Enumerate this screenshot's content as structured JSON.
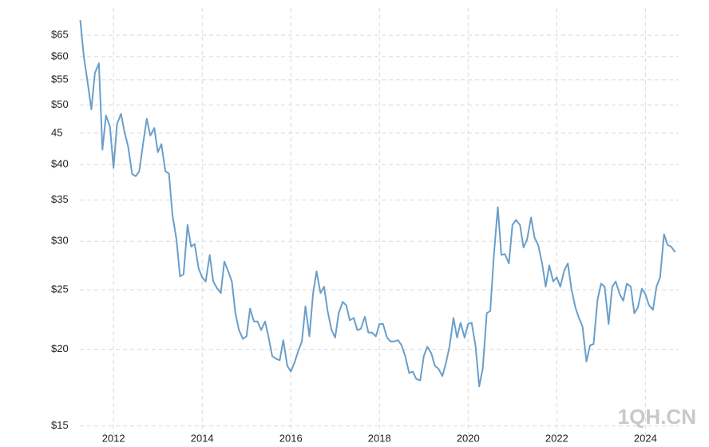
{
  "chart_data": {
    "type": "line",
    "log_scale": true,
    "grid": true,
    "watermark": "1QH.CN",
    "xlim": [
      2010.88,
      2024.75
    ],
    "xticks": [
      2012,
      2014,
      2016,
      2018,
      2020,
      2022,
      2024
    ],
    "ylim": [
      14.5,
      72
    ],
    "yticks": [
      {
        "value": 15,
        "label": "$15"
      },
      {
        "value": 20,
        "label": "$20"
      },
      {
        "value": 25,
        "label": "$25"
      },
      {
        "value": 30,
        "label": "$30"
      },
      {
        "value": 35,
        "label": "$35"
      },
      {
        "value": 40,
        "label": "$40"
      },
      45,
      {
        "value": 50,
        "label": "$50"
      },
      {
        "value": 55,
        "label": "$55"
      },
      {
        "value": 60,
        "label": "$60"
      },
      {
        "value": 65,
        "label": "$65"
      }
    ],
    "x": [
      2011.25,
      2011.33,
      2011.42,
      2011.5,
      2011.58,
      2011.67,
      2011.75,
      2011.83,
      2011.92,
      2012,
      2012.08,
      2012.17,
      2012.25,
      2012.33,
      2012.42,
      2012.5,
      2012.58,
      2012.67,
      2012.75,
      2012.83,
      2012.92,
      2013,
      2013.08,
      2013.17,
      2013.25,
      2013.33,
      2013.42,
      2013.5,
      2013.58,
      2013.67,
      2013.75,
      2013.83,
      2013.92,
      2014,
      2014.08,
      2014.17,
      2014.25,
      2014.33,
      2014.42,
      2014.5,
      2014.58,
      2014.67,
      2014.75,
      2014.83,
      2014.92,
      2015,
      2015.08,
      2015.17,
      2015.25,
      2015.33,
      2015.42,
      2015.5,
      2015.58,
      2015.67,
      2015.75,
      2015.83,
      2015.92,
      2016,
      2016.08,
      2016.17,
      2016.25,
      2016.33,
      2016.42,
      2016.5,
      2016.58,
      2016.67,
      2016.75,
      2016.83,
      2016.92,
      2017,
      2017.08,
      2017.17,
      2017.25,
      2017.33,
      2017.42,
      2017.5,
      2017.58,
      2017.67,
      2017.75,
      2017.83,
      2017.92,
      2018,
      2018.08,
      2018.17,
      2018.25,
      2018.33,
      2018.42,
      2018.5,
      2018.58,
      2018.67,
      2018.75,
      2018.83,
      2018.92,
      2019,
      2019.08,
      2019.17,
      2019.25,
      2019.33,
      2019.42,
      2019.5,
      2019.58,
      2019.67,
      2019.75,
      2019.83,
      2019.92,
      2020,
      2020.08,
      2020.17,
      2020.25,
      2020.33,
      2020.42,
      2020.5,
      2020.58,
      2020.67,
      2020.75,
      2020.83,
      2020.92,
      2021,
      2021.08,
      2021.17,
      2021.25,
      2021.33,
      2021.42,
      2021.5,
      2021.58,
      2021.67,
      2021.75,
      2021.83,
      2021.92,
      2022,
      2022.08,
      2022.17,
      2022.25,
      2022.33,
      2022.42,
      2022.5,
      2022.58,
      2022.67,
      2022.75,
      2022.83,
      2022.92,
      2023,
      2023.08,
      2023.17,
      2023.25,
      2023.33,
      2023.42,
      2023.5,
      2023.58,
      2023.67,
      2023.75,
      2023.83,
      2023.92,
      2024,
      2024.08,
      2024.17,
      2024.25,
      2024.33,
      2024.42,
      2024.5,
      2024.58,
      2024.67
    ],
    "series": [
      {
        "color": "#6a9fca",
        "values": [
          68.8,
          60,
          54.2,
          49.2,
          56.4,
          58.5,
          42.3,
          48.1,
          46.1,
          39.5,
          46.6,
          48.4,
          45.1,
          42.8,
          38.6,
          38.3,
          39,
          43.4,
          47.5,
          44.6,
          45.9,
          41.9,
          43.2,
          39,
          38.7,
          33.1,
          30.2,
          26.3,
          26.5,
          31.9,
          29.4,
          29.7,
          27.1,
          26.2,
          25.8,
          28.5,
          25.8,
          25.2,
          24.7,
          27.8,
          26.9,
          25.8,
          22.9,
          21.5,
          20.8,
          21,
          23.3,
          22.2,
          22.2,
          21.5,
          22.2,
          20.9,
          19.5,
          19.3,
          19.2,
          20.7,
          18.8,
          18.4,
          19,
          19.9,
          20.6,
          23.5,
          21,
          24.6,
          26.8,
          24.7,
          25.3,
          23.1,
          21.5,
          20.9,
          22.9,
          23.9,
          23.6,
          22.3,
          22.5,
          21.5,
          21.6,
          22.6,
          21.3,
          21.3,
          21,
          22,
          22,
          20.9,
          20.6,
          20.6,
          20.7,
          20.3,
          19.5,
          18.3,
          18.4,
          17.9,
          17.8,
          19.5,
          20.2,
          19.7,
          18.8,
          18.6,
          18.1,
          19,
          20.2,
          22.5,
          20.9,
          22.1,
          20.9,
          22,
          22.1,
          20.2,
          17.4,
          18.6,
          22.9,
          23.1,
          28.4,
          34.1,
          28.5,
          28.6,
          27.6,
          31.9,
          32.5,
          31.9,
          29.3,
          30.2,
          32.8,
          30.4,
          29.6,
          27.6,
          25.3,
          27.4,
          25.8,
          26.2,
          25.3,
          26.9,
          27.6,
          25.1,
          23.4,
          22.5,
          21.8,
          19.1,
          20.3,
          20.4,
          24.1,
          25.6,
          25.3,
          22,
          25.3,
          25.8,
          24.6,
          24,
          25.6,
          25.3,
          22.9,
          23.4,
          25.1,
          24.6,
          23.6,
          23.2,
          25.3,
          26.2,
          30.8,
          29.6,
          29.4,
          28.8
        ]
      }
    ]
  }
}
